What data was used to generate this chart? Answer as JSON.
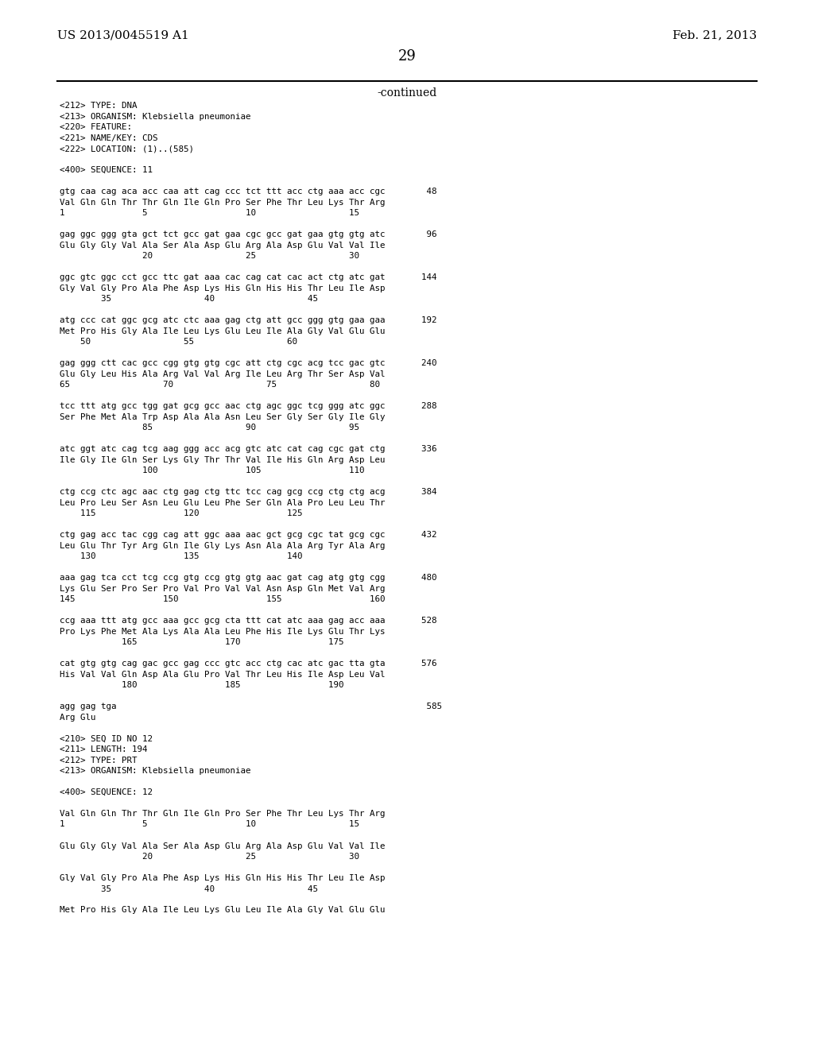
{
  "header_left": "US 2013/0045519 A1",
  "header_right": "Feb. 21, 2013",
  "page_number": "29",
  "continued_label": "-continued",
  "background_color": "#ffffff",
  "text_color": "#000000",
  "content": [
    "<212> TYPE: DNA",
    "<213> ORGANISM: Klebsiella pneumoniae",
    "<220> FEATURE:",
    "<221> NAME/KEY: CDS",
    "<222> LOCATION: (1)..(585)",
    "",
    "<400> SEQUENCE: 11",
    "",
    "gtg caa cag aca acc caa att cag ccc tct ttt acc ctg aaa acc cgc        48",
    "Val Gln Gln Thr Thr Gln Ile Gln Pro Ser Phe Thr Leu Lys Thr Arg",
    "1               5                   10                  15",
    "",
    "gag ggc ggg gta gct tct gcc gat gaa cgc gcc gat gaa gtg gtg atc        96",
    "Glu Gly Gly Val Ala Ser Ala Asp Glu Arg Ala Asp Glu Val Val Ile",
    "                20                  25                  30",
    "",
    "ggc gtc ggc cct gcc ttc gat aaa cac cag cat cac act ctg atc gat       144",
    "Gly Val Gly Pro Ala Phe Asp Lys His Gln His His Thr Leu Ile Asp",
    "        35                  40                  45",
    "",
    "atg ccc cat ggc gcg atc ctc aaa gag ctg att gcc ggg gtg gaa gaa       192",
    "Met Pro His Gly Ala Ile Leu Lys Glu Leu Ile Ala Gly Val Glu Glu",
    "    50                  55                  60",
    "",
    "gag ggg ctt cac gcc cgg gtg gtg cgc att ctg cgc acg tcc gac gtc       240",
    "Glu Gly Leu His Ala Arg Val Val Arg Ile Leu Arg Thr Ser Asp Val",
    "65                  70                  75                  80",
    "",
    "tcc ttt atg gcc tgg gat gcg gcc aac ctg agc ggc tcg ggg atc ggc       288",
    "Ser Phe Met Ala Trp Asp Ala Ala Asn Leu Ser Gly Ser Gly Ile Gly",
    "                85                  90                  95",
    "",
    "atc ggt atc cag tcg aag ggg acc acg gtc atc cat cag cgc gat ctg       336",
    "Ile Gly Ile Gln Ser Lys Gly Thr Thr Val Ile His Gln Arg Asp Leu",
    "                100                 105                 110",
    "",
    "ctg ccg ctc agc aac ctg gag ctg ttc tcc cag gcg ccg ctg ctg acg       384",
    "Leu Pro Leu Ser Asn Leu Glu Leu Phe Ser Gln Ala Pro Leu Leu Thr",
    "    115                 120                 125",
    "",
    "ctg gag acc tac cgg cag att ggc aaa aac gct gcg cgc tat gcg cgc       432",
    "Leu Glu Thr Tyr Arg Gln Ile Gly Lys Asn Ala Ala Arg Tyr Ala Arg",
    "    130                 135                 140",
    "",
    "aaa gag tca cct tcg ccg gtg ccg gtg gtg aac gat cag atg gtg cgg       480",
    "Lys Glu Ser Pro Ser Pro Val Pro Val Val Asn Asp Gln Met Val Arg",
    "145                 150                 155                 160",
    "",
    "ccg aaa ttt atg gcc aaa gcc gcg cta ttt cat atc aaa gag acc aaa       528",
    "Pro Lys Phe Met Ala Lys Ala Ala Leu Phe His Ile Lys Glu Thr Lys",
    "            165                 170                 175",
    "",
    "cat gtg gtg cag gac gcc gag ccc gtc acc ctg cac atc gac tta gta       576",
    "His Val Val Gln Asp Ala Glu Pro Val Thr Leu His Ile Asp Leu Val",
    "            180                 185                 190",
    "",
    "agg gag tga                                                            585",
    "Arg Glu",
    "",
    "<210> SEQ ID NO 12",
    "<211> LENGTH: 194",
    "<212> TYPE: PRT",
    "<213> ORGANISM: Klebsiella pneumoniae",
    "",
    "<400> SEQUENCE: 12",
    "",
    "Val Gln Gln Thr Thr Gln Ile Gln Pro Ser Phe Thr Leu Lys Thr Arg",
    "1               5                   10                  15",
    "",
    "Glu Gly Gly Val Ala Ser Ala Asp Glu Arg Ala Asp Glu Val Val Ile",
    "                20                  25                  30",
    "",
    "Gly Val Gly Pro Ala Phe Asp Lys His Gln His His Thr Leu Ile Asp",
    "        35                  40                  45",
    "",
    "Met Pro His Gly Ala Ile Leu Lys Glu Leu Ile Ala Gly Val Glu Glu"
  ]
}
